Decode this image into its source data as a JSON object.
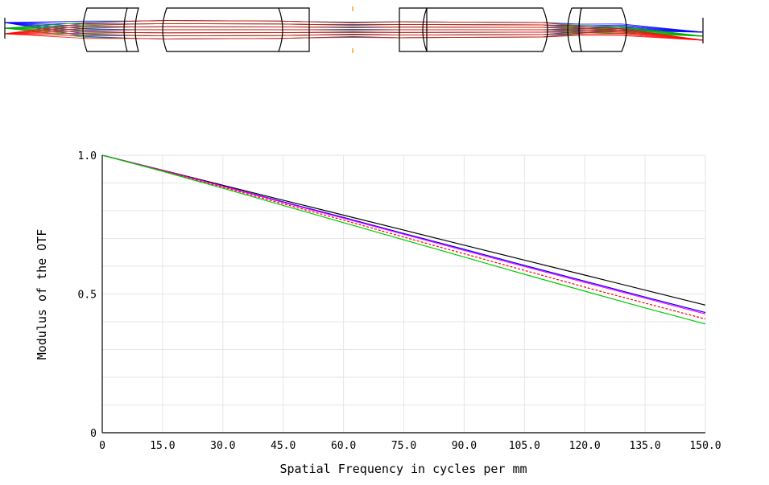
{
  "chart_data": {
    "type": "line",
    "title": "",
    "xlabel": "Spatial Frequency in cycles per mm",
    "ylabel": "Modulus of the OTF",
    "xlim": [
      0,
      150
    ],
    "ylim": [
      0,
      1
    ],
    "x_ticks": [
      "0",
      "15.0",
      "30.0",
      "45.0",
      "60.0",
      "75.0",
      "90.0",
      "105.0",
      "120.0",
      "135.0",
      "150.0"
    ],
    "y_ticks": [
      "0",
      "0.5",
      "1.0"
    ],
    "grid": true,
    "series": [
      {
        "color": "#000000",
        "dash": "",
        "x": [
          0,
          15,
          30,
          45,
          60,
          75,
          90,
          105,
          120,
          135,
          150
        ],
        "y": [
          1.0,
          0.946,
          0.892,
          0.838,
          0.784,
          0.73,
          0.676,
          0.622,
          0.568,
          0.514,
          0.46
        ]
      },
      {
        "color": "#0000ff",
        "dash": "",
        "x": [
          0,
          15,
          30,
          45,
          60,
          75,
          90,
          105,
          120,
          135,
          150
        ],
        "y": [
          1.0,
          0.945,
          0.889,
          0.832,
          0.776,
          0.718,
          0.661,
          0.603,
          0.546,
          0.489,
          0.433
        ]
      },
      {
        "color": "#ff00ff",
        "dash": "",
        "x": [
          0,
          15,
          30,
          45,
          60,
          75,
          90,
          105,
          120,
          135,
          150
        ],
        "y": [
          1.0,
          0.945,
          0.888,
          0.83,
          0.773,
          0.715,
          0.657,
          0.599,
          0.542,
          0.485,
          0.428
        ]
      },
      {
        "color": "#ff0000",
        "dash": "3,2",
        "x": [
          0,
          15,
          30,
          45,
          60,
          75,
          90,
          105,
          120,
          135,
          150
        ],
        "y": [
          1.0,
          0.944,
          0.885,
          0.825,
          0.766,
          0.705,
          0.645,
          0.585,
          0.525,
          0.467,
          0.41
        ]
      },
      {
        "color": "#00cc00",
        "dash": "",
        "x": [
          0,
          15,
          30,
          45,
          60,
          75,
          90,
          105,
          120,
          135,
          150
        ],
        "y": [
          1.0,
          0.942,
          0.881,
          0.819,
          0.757,
          0.695,
          0.633,
          0.571,
          0.51,
          0.45,
          0.392
        ]
      }
    ]
  },
  "lens_diagram": {
    "ray_colors": [
      "#0000ff",
      "#00aa00",
      "#ff0000"
    ]
  }
}
